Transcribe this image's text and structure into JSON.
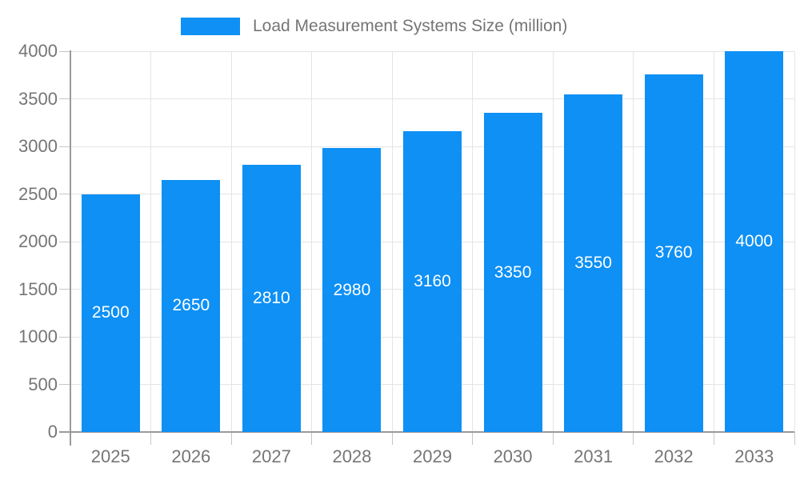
{
  "legend": {
    "label": "Load Measurement Systems Size (million)",
    "swatch_color": "#0E90F5"
  },
  "chart_data": {
    "type": "bar",
    "title": "Load Measurement Systems Size (million)",
    "categories": [
      "2025",
      "2026",
      "2027",
      "2028",
      "2029",
      "2030",
      "2031",
      "2032",
      "2033"
    ],
    "values": [
      2500,
      2650,
      2810,
      2980,
      3160,
      3350,
      3550,
      3760,
      4000
    ],
    "series_name": "Load Measurement Systems Size (million)",
    "xlabel": "",
    "ylabel": "",
    "ylim": [
      0,
      4000
    ],
    "ytick_step": 500,
    "yticks": [
      0,
      500,
      1000,
      1500,
      2000,
      2500,
      3000,
      3500,
      4000
    ],
    "grid": true,
    "legend_position": "top",
    "value_labels_inside_bars": true,
    "bar_color": "#0E90F5",
    "value_label_color": "#ffffff",
    "axis_text_color": "#757575",
    "grid_color": "#e4e4e7",
    "axis_line_color": "#9a9a9e"
  }
}
